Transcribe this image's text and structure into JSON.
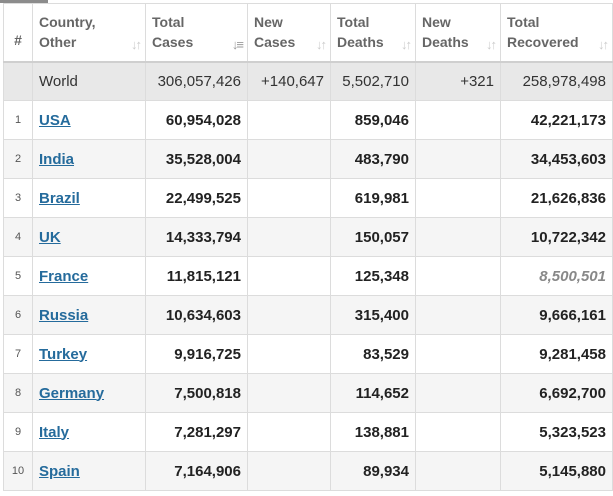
{
  "header": {
    "num": "#",
    "country": [
      "Country,",
      "Other"
    ],
    "total_cases": [
      "Total",
      "Cases"
    ],
    "new_cases": [
      "New",
      "Cases"
    ],
    "total_deaths": [
      "Total",
      "Deaths"
    ],
    "new_deaths": [
      "New",
      "Deaths"
    ],
    "total_recovered": [
      "Total",
      "Recovered"
    ]
  },
  "world": {
    "country": "World",
    "total_cases": "306,057,426",
    "new_cases": "+140,647",
    "total_deaths": "5,502,710",
    "new_deaths": "+321",
    "total_recovered": "258,978,498"
  },
  "rows": [
    {
      "num": "1",
      "country": "USA",
      "total_cases": "60,954,028",
      "new_cases": "",
      "total_deaths": "859,046",
      "new_deaths": "",
      "total_recovered": "42,221,173"
    },
    {
      "num": "2",
      "country": "India",
      "total_cases": "35,528,004",
      "new_cases": "",
      "total_deaths": "483,790",
      "new_deaths": "",
      "total_recovered": "34,453,603"
    },
    {
      "num": "3",
      "country": "Brazil",
      "total_cases": "22,499,525",
      "new_cases": "",
      "total_deaths": "619,981",
      "new_deaths": "",
      "total_recovered": "21,626,836"
    },
    {
      "num": "4",
      "country": "UK",
      "total_cases": "14,333,794",
      "new_cases": "",
      "total_deaths": "150,057",
      "new_deaths": "",
      "total_recovered": "10,722,342"
    },
    {
      "num": "5",
      "country": "France",
      "total_cases": "11,815,121",
      "new_cases": "",
      "total_deaths": "125,348",
      "new_deaths": "",
      "total_recovered": "8,500,501"
    },
    {
      "num": "6",
      "country": "Russia",
      "total_cases": "10,634,603",
      "new_cases": "",
      "total_deaths": "315,400",
      "new_deaths": "",
      "total_recovered": "9,666,161"
    },
    {
      "num": "7",
      "country": "Turkey",
      "total_cases": "9,916,725",
      "new_cases": "",
      "total_deaths": "83,529",
      "new_deaths": "",
      "total_recovered": "9,281,458"
    },
    {
      "num": "8",
      "country": "Germany",
      "total_cases": "7,500,818",
      "new_cases": "",
      "total_deaths": "114,652",
      "new_deaths": "",
      "total_recovered": "6,692,700"
    },
    {
      "num": "9",
      "country": "Italy",
      "total_cases": "7,281,297",
      "new_cases": "",
      "total_deaths": "138,881",
      "new_deaths": "",
      "total_recovered": "5,323,523"
    },
    {
      "num": "10",
      "country": "Spain",
      "total_cases": "7,164,906",
      "new_cases": "",
      "total_deaths": "89,934",
      "new_deaths": "",
      "total_recovered": "5,145,880"
    }
  ],
  "colors": {
    "link": "#256b9c",
    "world_row": "#e8e8e8",
    "alt_row": "#f5f5f5"
  },
  "icons": {
    "sort": "sort-arrows-icon",
    "sort_active": "sort-desc-icon"
  }
}
